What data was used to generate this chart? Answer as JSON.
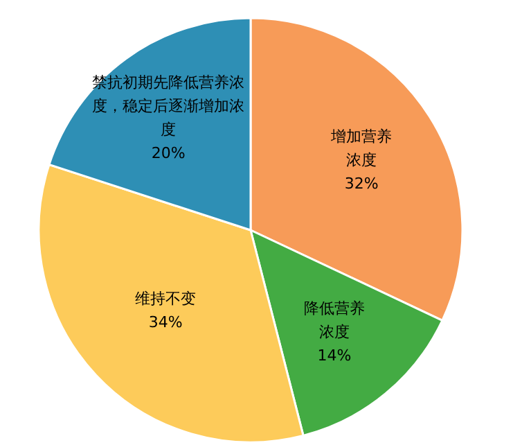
{
  "chart_data": {
    "type": "pie",
    "categories": [
      "增加营养浓度",
      "降低营养浓度",
      "维持不变",
      "禁抗初期先降低营养浓度，稳定后逐渐增加浓度"
    ],
    "values": [
      32,
      14,
      34,
      20
    ],
    "colors": [
      "#f79b58",
      "#43ab43",
      "#fdcb5a",
      "#2e8fb5"
    ],
    "value_labels": [
      "32%",
      "14%",
      "34%",
      "20%"
    ]
  }
}
